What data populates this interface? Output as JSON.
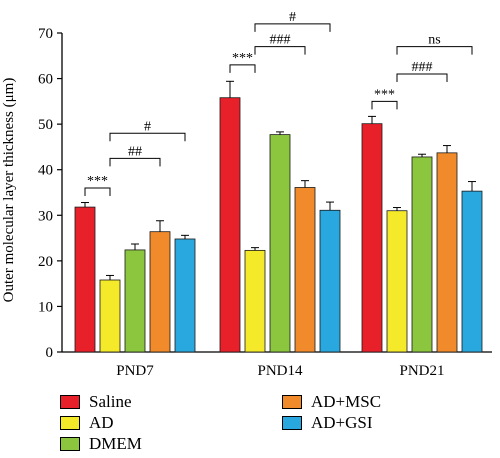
{
  "chart_data": {
    "type": "bar",
    "ylabel": "Outer molecular layer thickness (μm)",
    "ylim": [
      0,
      70
    ],
    "yticks": [
      0,
      10,
      20,
      30,
      40,
      50,
      60,
      70
    ],
    "grid": false,
    "legend_position": "bottom",
    "categories": [
      "PND7",
      "PND14",
      "PND21"
    ],
    "series": [
      {
        "name": "Saline",
        "color": "#e8202a",
        "values": [
          31.8,
          55.8,
          50.1
        ],
        "errors": [
          1.0,
          3.6,
          1.6
        ]
      },
      {
        "name": "AD",
        "color": "#f4ea2a",
        "values": [
          15.8,
          22.3,
          31.0
        ],
        "errors": [
          1.0,
          0.6,
          0.7
        ]
      },
      {
        "name": "DMEM",
        "color": "#8cc63f",
        "values": [
          22.4,
          47.7,
          42.8
        ],
        "errors": [
          1.3,
          0.6,
          0.6
        ]
      },
      {
        "name": "AD+MSC",
        "color": "#f18a2b",
        "values": [
          26.4,
          36.1,
          43.7
        ],
        "errors": [
          2.4,
          1.5,
          1.6
        ]
      },
      {
        "name": "AD+GSI",
        "color": "#29a8e0",
        "values": [
          24.8,
          31.1,
          35.3
        ],
        "errors": [
          0.8,
          1.8,
          2.1
        ]
      }
    ],
    "annotations": [
      {
        "category": 0,
        "from": 0,
        "to": 1,
        "level": 36.0,
        "label": "***"
      },
      {
        "category": 0,
        "from": 1,
        "to": 3,
        "level": 42.5,
        "label": "##"
      },
      {
        "category": 0,
        "from": 1,
        "to": 4,
        "level": 48.0,
        "label": "#"
      },
      {
        "category": 1,
        "from": 0,
        "to": 1,
        "level": 63.0,
        "label": "***"
      },
      {
        "category": 1,
        "from": 1,
        "to": 3,
        "level": 67.0,
        "label": "###"
      },
      {
        "category": 1,
        "from": 1,
        "to": 4,
        "level": 72.0,
        "label": "#"
      },
      {
        "category": 2,
        "from": 0,
        "to": 1,
        "level": 55.0,
        "label": "***"
      },
      {
        "category": 2,
        "from": 1,
        "to": 3,
        "level": 61.0,
        "label": "###"
      },
      {
        "category": 2,
        "from": 1,
        "to": 4,
        "level": 67.0,
        "label": "ns"
      }
    ]
  }
}
